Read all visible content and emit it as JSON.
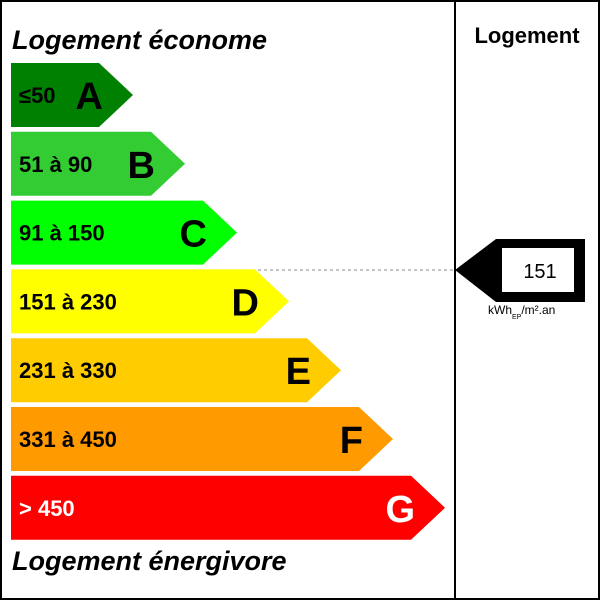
{
  "header": {
    "top_title": "Logement économe",
    "bottom_title": "Logement énergivore",
    "column_title": "Logement"
  },
  "classes": [
    {
      "letter": "A",
      "range": "≤50",
      "color": "#008000",
      "text_color": "#000000"
    },
    {
      "letter": "B",
      "range": "51 à 90",
      "color": "#33cc33",
      "text_color": "#000000"
    },
    {
      "letter": "C",
      "range": "91 à 150",
      "color": "#00ff00",
      "text_color": "#000000"
    },
    {
      "letter": "D",
      "range": "151 à 230",
      "color": "#ffff00",
      "text_color": "#000000"
    },
    {
      "letter": "E",
      "range": "231 à 330",
      "color": "#ffcc00",
      "text_color": "#000000"
    },
    {
      "letter": "F",
      "range": "331 à 450",
      "color": "#ff9a00",
      "text_color": "#000000"
    },
    {
      "letter": "G",
      "range": "> 450",
      "color": "#ff0000",
      "text_color": "#ffffff"
    }
  ],
  "indicator": {
    "value": "151",
    "class_letter": "D",
    "unit_prefix": "kWh",
    "unit_sub": "EP",
    "unit_suffix": "/m².an"
  }
}
